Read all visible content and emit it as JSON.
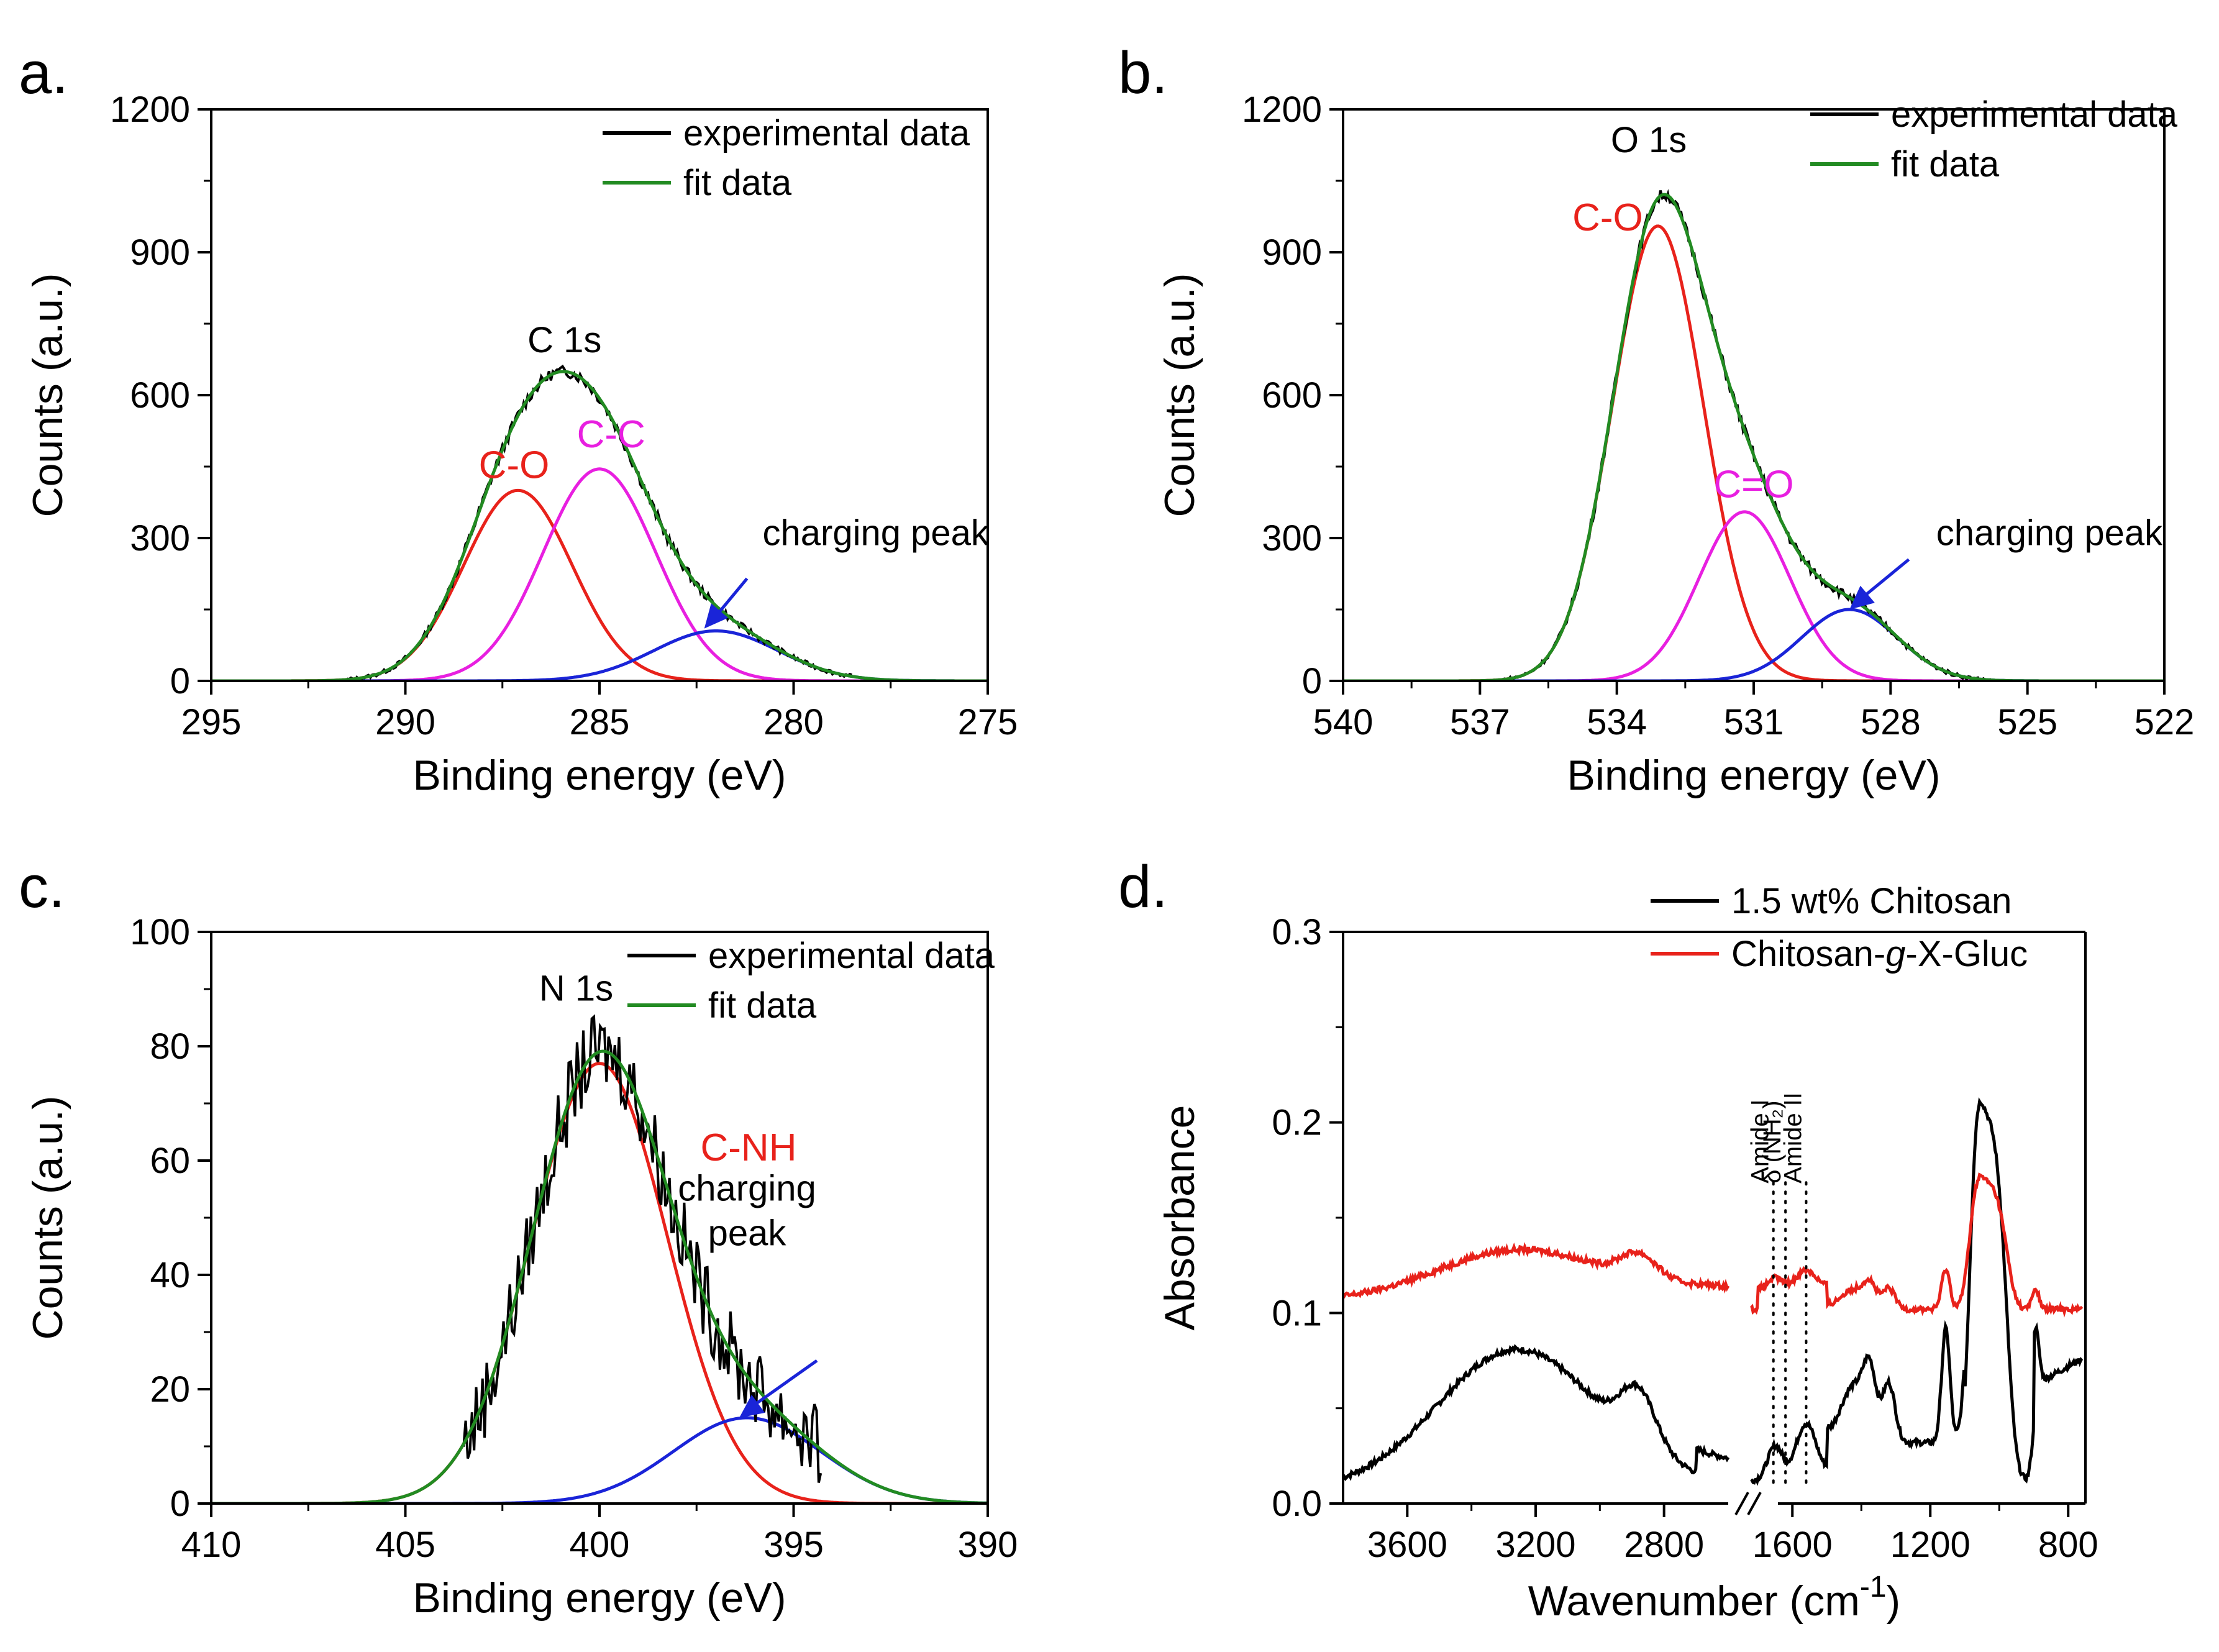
{
  "chart_data": [
    {
      "type": "line",
      "panel_label": "a.",
      "title": "C 1s",
      "xlabel": "Binding energy (eV)",
      "ylabel": "Counts (a.u.)",
      "xlim": [
        295,
        275
      ],
      "ylim": [
        0,
        1200
      ],
      "xticks": [
        295,
        290,
        285,
        280,
        275
      ],
      "yticks": [
        0,
        300,
        600,
        900,
        1200
      ],
      "legend_position": "top-right",
      "legend": [
        {
          "label": "experimental data",
          "color": "#000000"
        },
        {
          "label": "fit data",
          "color": "#228B22"
        }
      ],
      "components": [
        {
          "label": "C-O",
          "color": "#E8221B",
          "center": 287.1,
          "amplitude": 400,
          "sigma": 1.4
        },
        {
          "label": "C-C",
          "color": "#E81FE0",
          "center": 285.0,
          "amplitude": 445,
          "sigma": 1.45
        },
        {
          "label": "charging peak",
          "color": "#1A24D8",
          "center": 282.0,
          "amplitude": 105,
          "sigma": 1.6
        }
      ],
      "range": [
        291.5,
        278.5
      ],
      "annotations": [
        {
          "text": "charging peak",
          "arrow_to": [
            282.3,
            110
          ]
        }
      ]
    },
    {
      "type": "line",
      "panel_label": "b.",
      "title": "O 1s",
      "xlabel": "Binding energy (eV)",
      "ylabel": "Counts (a.u.)",
      "xlim": [
        540,
        522
      ],
      "ylim": [
        0,
        1200
      ],
      "xticks": [
        540,
        537,
        534,
        531,
        528,
        525,
        522
      ],
      "yticks": [
        0,
        300,
        600,
        900,
        1200
      ],
      "legend_position": "top-right",
      "legend": [
        {
          "label": "experimental data",
          "color": "#000000"
        },
        {
          "label": "fit data",
          "color": "#228B22"
        }
      ],
      "components": [
        {
          "label": "C-O",
          "color": "#E8221B",
          "center": 533.1,
          "amplitude": 955,
          "sigma": 1.0
        },
        {
          "label": "C=O",
          "color": "#E81FE0",
          "center": 531.2,
          "amplitude": 355,
          "sigma": 1.0
        },
        {
          "label": "charging peak",
          "color": "#1A24D8",
          "center": 528.9,
          "amplitude": 150,
          "sigma": 1.05
        }
      ],
      "range": [
        536.5,
        525.8
      ],
      "annotations": [
        {
          "text": "charging peak",
          "arrow_to": [
            528.9,
            150
          ]
        }
      ]
    },
    {
      "type": "line",
      "panel_label": "c.",
      "title": "N 1s",
      "xlabel": "Binding energy (eV)",
      "ylabel": "Counts (a.u.)",
      "xlim": [
        410,
        390
      ],
      "ylim": [
        0,
        100
      ],
      "xticks": [
        410,
        405,
        400,
        395,
        390
      ],
      "yticks": [
        0,
        20,
        40,
        60,
        80,
        100
      ],
      "legend_position": "top-right",
      "legend": [
        {
          "label": "experimental data",
          "color": "#000000"
        },
        {
          "label": "fit data",
          "color": "#228B22"
        }
      ],
      "components": [
        {
          "label": "C-NH",
          "color": "#E8221B",
          "center": 400.0,
          "amplitude": 77,
          "sigma": 1.75
        },
        {
          "label": "charging peak",
          "color": "#1A24D8",
          "center": 396.2,
          "amplitude": 15,
          "sigma": 1.9
        }
      ],
      "range": [
        403.5,
        394.3
      ],
      "annotations": [
        {
          "text": "charging\npeak",
          "arrow_to": [
            396.4,
            15
          ]
        }
      ]
    },
    {
      "type": "line",
      "panel_label": "d.",
      "xlabel": "Wavenumber (cm",
      "xlabel_sup": "-1",
      "xlabel_close": ")",
      "ylabel": "Absorbance",
      "ylim": [
        0,
        0.3
      ],
      "yticks": [
        "0.0",
        "0.1",
        "0.2",
        "0.3"
      ],
      "x_segments": [
        [
          3800,
          2600
        ],
        [
          1750,
          750
        ]
      ],
      "xticks": [
        3600,
        3200,
        2800,
        1600,
        1200,
        800
      ],
      "legend_position": "top-right",
      "series": [
        {
          "name": "1.5 wt% Chitosan",
          "color": "#000000"
        },
        {
          "name_parts": [
            "Chitosan-",
            "g",
            "-X-Gluc"
          ],
          "color": "#E8221B"
        }
      ],
      "band_labels": [
        "Amide I",
        "δ (NH₂)",
        "Amide II"
      ],
      "band_positions": [
        1655,
        1620,
        1560
      ]
    }
  ]
}
